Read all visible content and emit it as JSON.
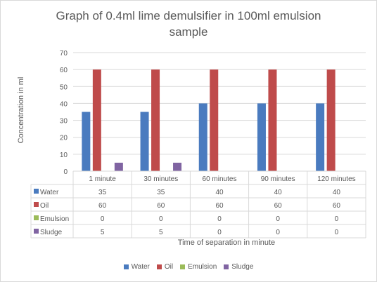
{
  "chart_data": {
    "type": "bar",
    "title_lines": [
      "Graph of 0.4ml lime demulsifier in 100ml emulsion",
      "sample"
    ],
    "xlabel": "Time of separation in minute",
    "ylabel": "Concentration in ml",
    "ylim": [
      0,
      70
    ],
    "yticks": [
      "0",
      "10",
      "20",
      "30",
      "40",
      "50",
      "60",
      "70"
    ],
    "grid": true,
    "legend_position": "bottom",
    "categories": [
      "1 minute",
      "30 minutes",
      "60 minutes",
      "90 minutes",
      "120 minutes"
    ],
    "series": [
      {
        "name": "Water",
        "color": "#4a7bbf",
        "values": [
          35,
          35,
          40,
          40,
          40
        ]
      },
      {
        "name": "Oil",
        "color": "#bf4b4b",
        "values": [
          60,
          60,
          60,
          60,
          60
        ]
      },
      {
        "name": "Emulsion",
        "color": "#9bbb59",
        "values": [
          0,
          0,
          0,
          0,
          0
        ]
      },
      {
        "name": "Sludge",
        "color": "#8064a2",
        "values": [
          5,
          5,
          0,
          0,
          0
        ]
      }
    ],
    "data_table": true
  }
}
